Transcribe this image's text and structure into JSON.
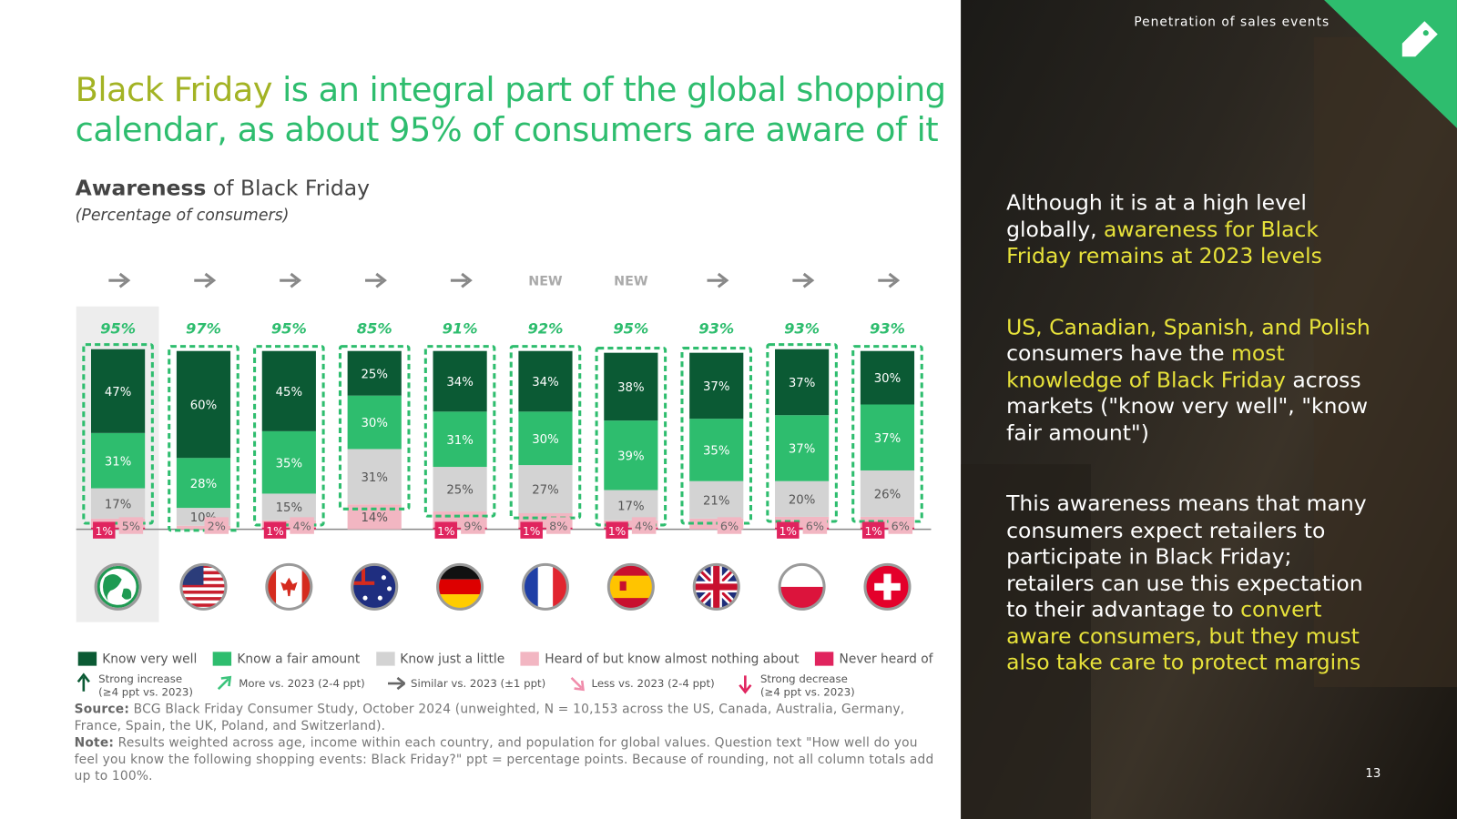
{
  "header": {
    "section": "Penetration of sales events",
    "page": "13"
  },
  "title": {
    "lines": [
      [
        {
          "text": "Black Friday",
          "highlight": true
        },
        {
          "text": " is an integral part of the global shopping"
        }
      ],
      [
        {
          "text": "calendar, as about 95% of consumers are aware of it"
        }
      ]
    ]
  },
  "chart_data": {
    "type": "stacked_bar",
    "title": [
      {
        "text": "Awareness",
        "bold": true
      },
      {
        "text": " of Black Friday"
      }
    ],
    "subtitle": "(Percentage of consumers)",
    "ylim": [
      0,
      100
    ],
    "trends": [
      "right",
      "right",
      "right",
      "right",
      "right",
      null,
      null,
      "right",
      "right",
      "right"
    ],
    "trend_labels": [
      null,
      null,
      null,
      null,
      null,
      "NEW",
      "NEW",
      null,
      null,
      null
    ],
    "totals": {
      "values": [
        95,
        97,
        95,
        85,
        91,
        92,
        95,
        93,
        93,
        93
      ],
      "value_labels": [
        "95%",
        "97%",
        "95%",
        "85%",
        "91%",
        "92%",
        "95%",
        "93%",
        "93%",
        "93%"
      ]
    },
    "series": [
      {
        "name": "Know very well",
        "color": "#0b5a34",
        "values": [
          47,
          60,
          45,
          25,
          34,
          34,
          38,
          37,
          37,
          30
        ],
        "value_labels": [
          "47%",
          "60%",
          "45%",
          "25%",
          "34%",
          "34%",
          "38%",
          "37%",
          "37%",
          "30%"
        ]
      },
      {
        "name": "Know a fair amount",
        "color": "#2ebd6e",
        "values": [
          31,
          28,
          35,
          30,
          31,
          30,
          39,
          35,
          37,
          37
        ],
        "value_labels": [
          "31%",
          "28%",
          "35%",
          "30%",
          "31%",
          "30%",
          "39%",
          "35%",
          "37%",
          "37%"
        ]
      },
      {
        "name": "Know just a little",
        "color": "#d3d3d3",
        "values": [
          17,
          10,
          15,
          31,
          25,
          27,
          17,
          21,
          20,
          26
        ],
        "value_labels": [
          "17%",
          "10%",
          "15%",
          "31%",
          "25%",
          "27%",
          "17%",
          "21%",
          "20%",
          "26%"
        ]
      },
      {
        "name": "Heard of but know almost nothing about",
        "color": "#f2b6c2",
        "values": [
          5,
          2,
          4,
          14,
          9,
          8,
          4,
          6,
          6,
          6
        ],
        "value_labels": [
          "5%",
          "2%",
          "4%",
          "14%",
          "9%",
          "8%",
          "4%",
          "6%",
          "6%",
          "6%"
        ]
      },
      {
        "name": "Never heard of",
        "color": "#e0245e",
        "values": [
          1,
          null,
          1,
          null,
          1,
          1,
          1,
          null,
          1,
          1
        ],
        "value_labels": [
          "1%",
          null,
          "1%",
          null,
          "1%",
          "1%",
          "1%",
          null,
          "1%",
          "1%"
        ]
      }
    ],
    "trend_legend": [
      {
        "lines": [
          "Strong increase",
          "(≥4 ppt vs. 2023)"
        ],
        "direction": "up",
        "color": "#0b5a34"
      },
      {
        "lines": [
          "More vs. 2023 (2-4 ppt)"
        ],
        "direction": "up-right",
        "color": "#3cc47c"
      },
      {
        "lines": [
          "Similar vs. 2023 (±1 ppt)"
        ],
        "direction": "right",
        "color": "#666666"
      },
      {
        "lines": [
          "Less vs. 2023 (2-4 ppt)"
        ],
        "direction": "down-right",
        "color": "#f08cab"
      },
      {
        "lines": [
          "Strong decrease",
          "(≥4 ppt vs. 2023)"
        ],
        "direction": "down",
        "color": "#e0245e"
      }
    ]
  },
  "source": {
    "label": "Source:",
    "text": " BCG Black Friday Consumer Study, October 2024 (unweighted, N = 10,153 across the US, Canada, Australia, Germany, France, Spain, the UK, Poland, and Switzerland)."
  },
  "note": {
    "label": "Note:",
    "text": " Results weighted across age, income within each country, and population for global values. Question text \"How well do you feel you know the following shopping events: Black Friday?\" ppt = percentage points. Because of rounding, not all column totals add up to 100%."
  },
  "sidebar": {
    "paragraphs": [
      [
        {
          "text": "Although it is at a high level globally, "
        },
        {
          "text": "awareness for Black Friday remains at 2023 levels",
          "highlight": true
        }
      ],
      [
        {
          "text": "US, Canadian, Spanish, and Polish",
          "highlight": true
        },
        {
          "text": " consumers have the "
        },
        {
          "text": "most knowledge of Black Friday",
          "highlight": true
        },
        {
          "text": " across markets (\"know very well\", \"know fair amount\")"
        }
      ],
      [
        {
          "text": "This awareness means that many consumers expect retailers to participate in Black Friday; retailers can use this expectation to their advantage to "
        },
        {
          "text": "convert aware consumers, but they must also take care to protect margins",
          "highlight": true
        }
      ]
    ]
  }
}
